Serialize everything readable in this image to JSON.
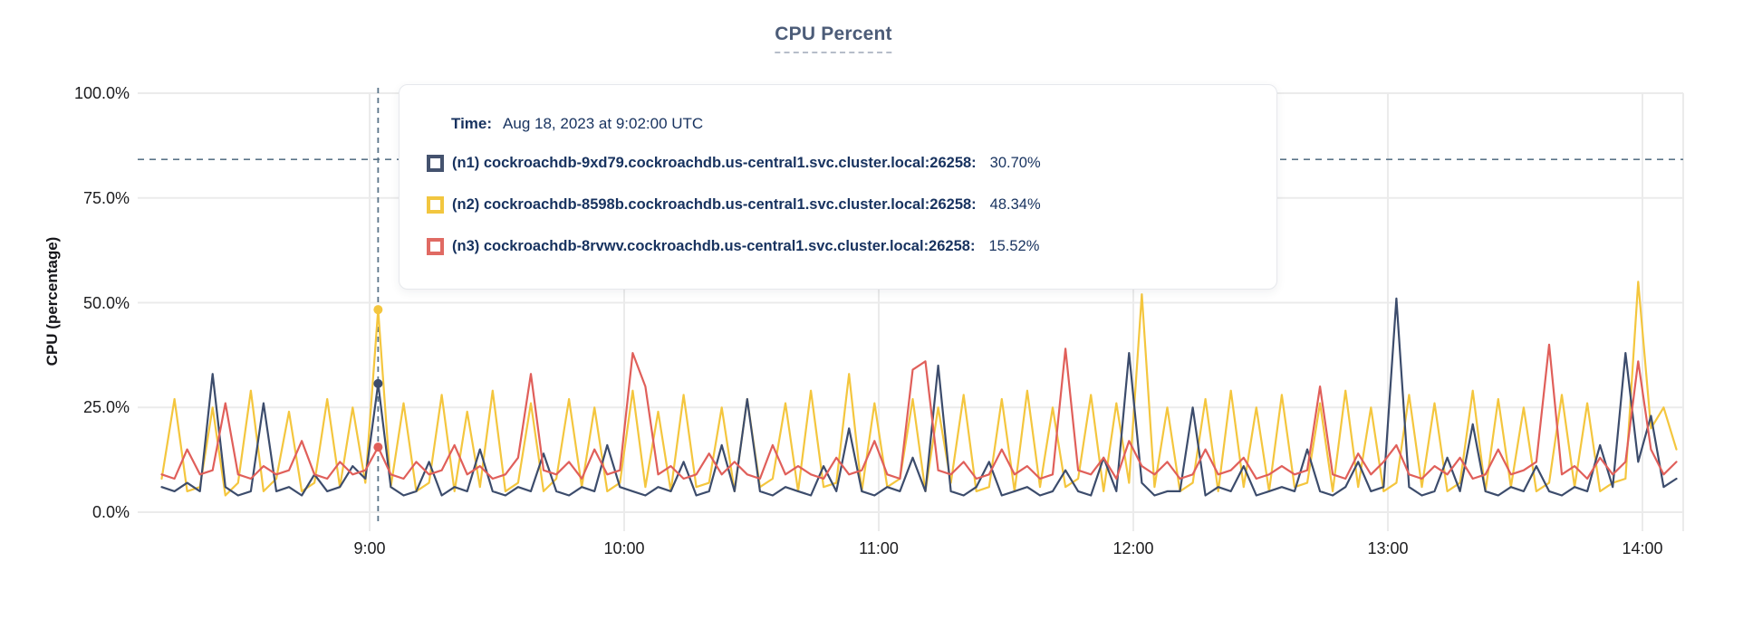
{
  "chart": {
    "title": "CPU Percent",
    "y_axis_label": "CPU (percentage)"
  },
  "tooltip": {
    "time_label": "Time:",
    "time_value": "Aug 18, 2023 at 9:02:00 UTC",
    "rows": [
      {
        "label": "(n1) cockroachdb-9xd79.cockroachdb.us-central1.svc.cluster.local:26258:",
        "value": "30.70%",
        "color": "#44526e"
      },
      {
        "label": "(n2) cockroachdb-8598b.cockroachdb.us-central1.svc.cluster.local:26258:",
        "value": "48.34%",
        "color": "#f2c63f"
      },
      {
        "label": "(n3) cockroachdb-8rvwv.cockroachdb.us-central1.svc.cluster.local:26258:",
        "value": "15.52%",
        "color": "#e06a63"
      }
    ]
  },
  "chart_data": {
    "type": "line",
    "title": "CPU Percent",
    "ylabel": "CPU (percentage)",
    "ylim": [
      0,
      100
    ],
    "grid": true,
    "legend_position": "tooltip-overlay",
    "y_ticks": [
      {
        "label": "100.0%",
        "value": 100
      },
      {
        "label": "75.0%",
        "value": 75
      },
      {
        "label": "50.0%",
        "value": 50
      },
      {
        "label": "25.0%",
        "value": 25
      },
      {
        "label": "0.0%",
        "value": 0
      }
    ],
    "x_ticks": [
      {
        "label": "9:00",
        "minutes": 540
      },
      {
        "label": "10:00",
        "minutes": 600
      },
      {
        "label": "11:00",
        "minutes": 660
      },
      {
        "label": "12:00",
        "minutes": 720
      },
      {
        "label": "13:00",
        "minutes": 780
      },
      {
        "label": "14:00",
        "minutes": 840
      }
    ],
    "x_start_minutes": 491,
    "x_step_minutes": 3,
    "threshold_value": 84.2,
    "hover": {
      "index": 17,
      "time": "9:02:00 UTC",
      "values": [
        30.7,
        48.34,
        15.52
      ]
    },
    "colors": {
      "grid": "#ebebeb",
      "crosshair": "#5b7589"
    },
    "series": [
      {
        "name": "(n1) cockroachdb-9xd79.cockroachdb.us-central1.svc.cluster.local:26258",
        "color": "#3c4c6c",
        "values": [
          6,
          5,
          7,
          5,
          33,
          6,
          4,
          5,
          26,
          5,
          6,
          4,
          9,
          5,
          6,
          11,
          8,
          30.7,
          6,
          4,
          5,
          12,
          4,
          6,
          5,
          15,
          5,
          4,
          6,
          5,
          14,
          5,
          4,
          6,
          5,
          16,
          6,
          5,
          4,
          6,
          5,
          12,
          4,
          5,
          16,
          5,
          27,
          5,
          4,
          6,
          5,
          4,
          11,
          5,
          20,
          5,
          4,
          6,
          5,
          13,
          5,
          35,
          5,
          4,
          6,
          12,
          4,
          5,
          6,
          4,
          5,
          10,
          5,
          4,
          13,
          5,
          38,
          7,
          4,
          5,
          5,
          25,
          4,
          6,
          5,
          11,
          4,
          5,
          6,
          5,
          15,
          5,
          4,
          6,
          12,
          5,
          6,
          51,
          6,
          4,
          5,
          13,
          5,
          21,
          5,
          4,
          6,
          5,
          11,
          5,
          4,
          6,
          5,
          16,
          6,
          38,
          12,
          23,
          6,
          8
        ]
      },
      {
        "name": "(n2) cockroachdb-8598b.cockroachdb.us-central1.svc.cluster.local:26258",
        "color": "#f4c63e",
        "values": [
          8,
          27,
          5,
          6,
          25,
          4,
          7,
          29,
          5,
          8,
          24,
          5,
          7,
          27,
          6,
          25,
          7,
          48.34,
          6,
          26,
          5,
          7,
          28,
          5,
          24,
          6,
          29,
          5,
          7,
          26,
          5,
          8,
          27,
          6,
          25,
          5,
          7,
          29,
          6,
          24,
          5,
          28,
          6,
          7,
          25,
          5,
          27,
          6,
          8,
          26,
          5,
          29,
          6,
          7,
          33,
          5,
          26,
          6,
          8,
          27,
          5,
          25,
          7,
          28,
          5,
          6,
          27,
          5,
          29,
          6,
          25,
          6,
          8,
          28,
          5,
          26,
          7,
          52,
          6,
          25,
          5,
          7,
          27,
          5,
          29,
          6,
          25,
          5,
          28,
          6,
          7,
          26,
          5,
          29,
          6,
          25,
          5,
          7,
          28,
          6,
          26,
          5,
          7,
          29,
          5,
          27,
          6,
          25,
          5,
          7,
          28,
          6,
          26,
          5,
          7,
          8,
          55,
          20,
          25,
          15
        ]
      },
      {
        "name": "(n3) cockroachdb-8rvwv.cockroachdb.us-central1.svc.cluster.local:26258",
        "color": "#e05f5a",
        "values": [
          9,
          8,
          15,
          9,
          10,
          26,
          9,
          8,
          11,
          9,
          10,
          17,
          9,
          8,
          12,
          9,
          10,
          15.52,
          9,
          8,
          12,
          9,
          10,
          16,
          9,
          11,
          8,
          9,
          13,
          33,
          10,
          9,
          12,
          8,
          15,
          9,
          10,
          38,
          30,
          9,
          11,
          8,
          9,
          14,
          9,
          12,
          9,
          8,
          16,
          9,
          11,
          9,
          8,
          13,
          9,
          10,
          17,
          9,
          8,
          34,
          36,
          10,
          9,
          12,
          8,
          9,
          15,
          9,
          11,
          8,
          9,
          39,
          10,
          9,
          13,
          8,
          17,
          11,
          9,
          12,
          8,
          9,
          15,
          9,
          10,
          13,
          8,
          9,
          11,
          9,
          10,
          30,
          9,
          8,
          14,
          9,
          12,
          16,
          9,
          8,
          11,
          9,
          13,
          8,
          9,
          15,
          9,
          10,
          12,
          40,
          9,
          11,
          8,
          13,
          9,
          12,
          36,
          15,
          9,
          12
        ]
      }
    ]
  }
}
